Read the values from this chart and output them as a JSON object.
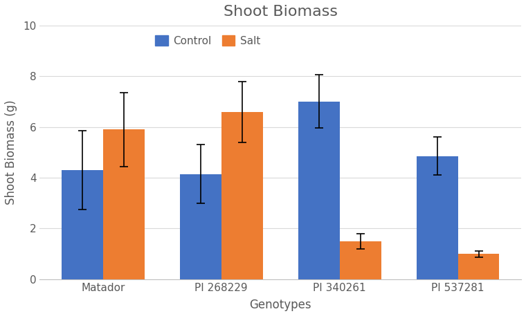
{
  "title": "Shoot Biomass",
  "xlabel": "Genotypes",
  "ylabel": "Shoot Biomass (g)",
  "categories": [
    "Matador",
    "PI 268229",
    "PI 340261",
    "PI 537281"
  ],
  "control_values": [
    4.3,
    4.15,
    7.0,
    4.85
  ],
  "salt_values": [
    5.9,
    6.6,
    1.5,
    1.0
  ],
  "control_errors": [
    1.55,
    1.15,
    1.05,
    0.75
  ],
  "salt_errors": [
    1.45,
    1.2,
    0.3,
    0.12
  ],
  "control_color": "#4472C4",
  "salt_color": "#ED7D31",
  "bar_width": 0.35,
  "ylim": [
    0,
    10
  ],
  "yticks": [
    0,
    2,
    4,
    6,
    8,
    10
  ],
  "legend_labels": [
    "Control",
    "Salt"
  ],
  "background_color": "#ffffff",
  "plot_bg_color": "#ffffff",
  "grid_color": "#d9d9d9",
  "title_fontsize": 16,
  "title_color": "#595959",
  "axis_label_fontsize": 12,
  "axis_label_color": "#595959",
  "tick_fontsize": 11,
  "tick_color": "#595959",
  "legend_fontsize": 11
}
